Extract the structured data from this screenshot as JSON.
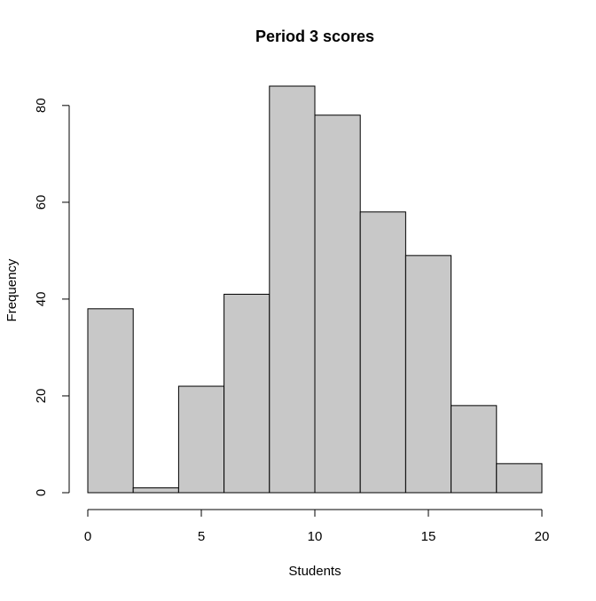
{
  "chart_data": {
    "type": "bar",
    "title": "Period 3 scores",
    "xlabel": "Students",
    "ylabel": "Frequency",
    "bins": [
      {
        "x0": 0,
        "x1": 2,
        "count": 38
      },
      {
        "x0": 2,
        "x1": 4,
        "count": 1
      },
      {
        "x0": 4,
        "x1": 6,
        "count": 22
      },
      {
        "x0": 6,
        "x1": 8,
        "count": 41
      },
      {
        "x0": 8,
        "x1": 10,
        "count": 84
      },
      {
        "x0": 10,
        "x1": 12,
        "count": 78
      },
      {
        "x0": 12,
        "x1": 14,
        "count": 58
      },
      {
        "x0": 14,
        "x1": 16,
        "count": 49
      },
      {
        "x0": 16,
        "x1": 18,
        "count": 18
      },
      {
        "x0": 18,
        "x1": 20,
        "count": 6
      }
    ],
    "xlim": [
      0,
      20
    ],
    "ylim": [
      0,
      84
    ],
    "xticks": [
      0,
      5,
      10,
      15,
      20
    ],
    "yticks": [
      0,
      20,
      40,
      60,
      80
    ],
    "grid": false,
    "bar_color": "#c8c8c8",
    "edge_color": "#000000"
  }
}
